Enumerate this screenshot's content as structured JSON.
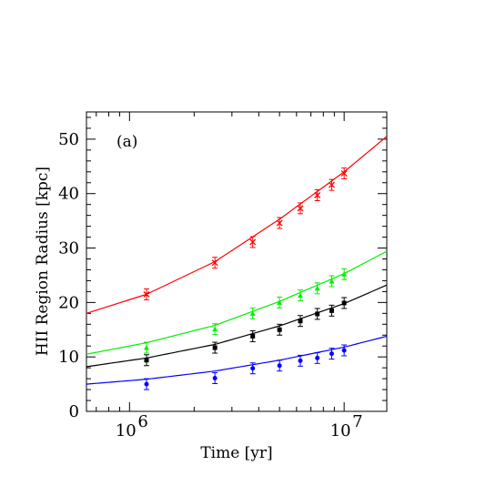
{
  "chart_data": {
    "type": "scatter",
    "panel_label": "(a)",
    "xlabel": "Time [yr]",
    "ylabel": "HII Region Radius [kpc]",
    "x_scale": "log",
    "xlim": [
      630000,
      15800000
    ],
    "ylim": [
      0,
      55
    ],
    "x_tick_labels": [
      {
        "value": 1000000,
        "base": "10",
        "exp": "6"
      },
      {
        "value": 10000000,
        "base": "10",
        "exp": "7"
      }
    ],
    "y_ticks": [
      0,
      10,
      20,
      30,
      40,
      50
    ],
    "grid": false,
    "series": [
      {
        "color": "#ff0000",
        "marker": "cross",
        "x": [
          1200000,
          2500000,
          3750000,
          5000000,
          6250000,
          7500000,
          8750000,
          10000000
        ],
        "y": [
          21.5,
          27.3,
          31.1,
          34.6,
          37.3,
          39.7,
          41.6,
          43.7
        ],
        "err": [
          1.0,
          1.0,
          1.0,
          1.0,
          1.0,
          1.0,
          1.0,
          1.0
        ],
        "fit": {
          "x": [
            630000,
            1200000,
            2500000,
            5000000,
            10000000,
            15800000
          ],
          "y": [
            18.0,
            21.5,
            27.5,
            35.3,
            44.0,
            50.5
          ]
        }
      },
      {
        "color": "#00ee00",
        "marker": "triangle",
        "x": [
          1200000,
          2500000,
          3750000,
          5000000,
          6250000,
          7500000,
          8750000,
          10000000
        ],
        "y": [
          11.7,
          15.1,
          18.0,
          20.0,
          21.3,
          22.6,
          23.9,
          25.2
        ],
        "err": [
          1.0,
          1.0,
          1.0,
          1.0,
          1.0,
          1.0,
          1.0,
          1.0
        ],
        "fit": {
          "x": [
            630000,
            1200000,
            2500000,
            5000000,
            10000000,
            15800000
          ],
          "y": [
            10.5,
            12.6,
            15.8,
            20.2,
            25.3,
            29.4
          ]
        }
      },
      {
        "color": "#000000",
        "marker": "square",
        "x": [
          1200000,
          2500000,
          3750000,
          5000000,
          6250000,
          7500000,
          8750000,
          10000000
        ],
        "y": [
          9.4,
          11.7,
          13.8,
          15.0,
          16.6,
          17.9,
          18.5,
          19.9
        ],
        "err": [
          1.0,
          1.0,
          1.0,
          1.0,
          1.0,
          1.0,
          1.0,
          1.0
        ],
        "fit": {
          "x": [
            630000,
            1200000,
            2500000,
            5000000,
            10000000,
            15800000
          ],
          "y": [
            8.2,
            9.8,
            12.3,
            15.7,
            19.8,
            23.2
          ]
        }
      },
      {
        "color": "#0000ff",
        "marker": "circle",
        "x": [
          1200000,
          2500000,
          3750000,
          5000000,
          6250000,
          7500000,
          8750000,
          10000000
        ],
        "y": [
          5.0,
          6.1,
          7.9,
          8.4,
          9.3,
          9.8,
          10.6,
          11.2
        ],
        "err": [
          1.0,
          1.0,
          1.0,
          1.0,
          1.0,
          1.0,
          1.0,
          1.0
        ],
        "fit": {
          "x": [
            630000,
            1200000,
            2500000,
            5000000,
            10000000,
            15800000
          ],
          "y": [
            5.0,
            5.9,
            7.4,
            9.4,
            11.8,
            13.8
          ]
        }
      }
    ]
  }
}
